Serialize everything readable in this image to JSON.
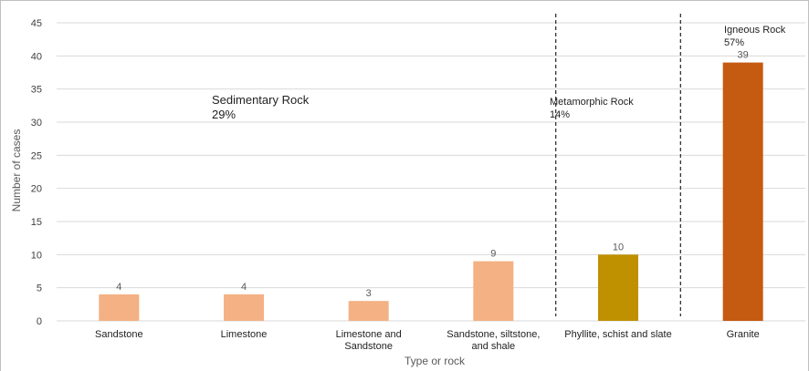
{
  "chart_data": {
    "type": "bar",
    "categories": [
      [
        "Sandstone"
      ],
      [
        "Limestone"
      ],
      [
        "Limestone and",
        "Sandstone"
      ],
      [
        "Sandstone, siltstone,",
        "and shale"
      ],
      [
        "Phyllite, schist and slate"
      ],
      [
        "Granite"
      ]
    ],
    "values": [
      4,
      4,
      3,
      9,
      10,
      39
    ],
    "bar_colors": [
      "#f4b183",
      "#f4b183",
      "#f4b183",
      "#f4b183",
      "#bf9000",
      "#c55a11"
    ],
    "data_labels": [
      "4",
      "4",
      "3",
      "9",
      "10",
      "39"
    ],
    "xlabel": "Type or rock",
    "ylabel": "Number of cases",
    "ylim": [
      0,
      45
    ],
    "yticks": [
      0,
      5,
      10,
      15,
      20,
      25,
      30,
      35,
      40,
      45
    ],
    "grid": true,
    "legend": "none",
    "groups": [
      {
        "name": "Sedimentary Rock",
        "percent": "29%"
      },
      {
        "name": "Metamorphic Rock",
        "percent": "14%"
      },
      {
        "name": "Igneous Rock",
        "percent": "57%"
      }
    ]
  }
}
